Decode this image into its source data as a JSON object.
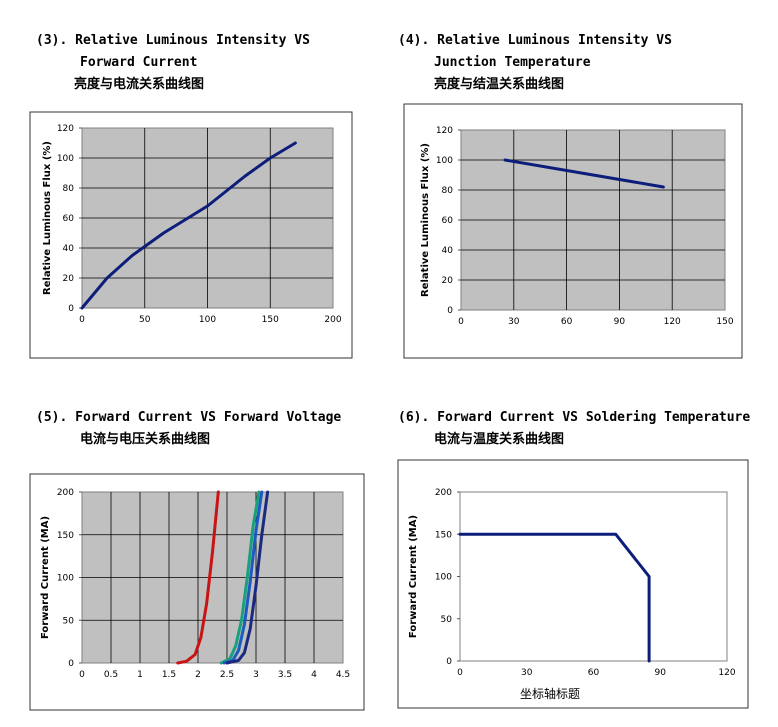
{
  "headings": {
    "h3": {
      "line1": "(3). Relative Luminous Intensity VS",
      "line2": "Forward Current",
      "cn": "亮度与电流关系曲线图"
    },
    "h4": {
      "line1": "(4). Relative Luminous Intensity VS",
      "line2": "Junction Temperature",
      "cn": "亮度与结温关系曲线图"
    },
    "h5": {
      "line1": "(5). Forward Current VS Forward Voltage",
      "cn": "电流与电压关系曲线图"
    },
    "h6": {
      "line1": "(6). Forward Current VS Soldering Temperature",
      "cn": "电流与温度关系曲线图"
    }
  },
  "chart_data": [
    {
      "type": "line",
      "ylabel": "Relative Luminous Flux (%)",
      "xlabel": "",
      "xlim": [
        0,
        200
      ],
      "ylim": [
        0,
        120
      ],
      "xticks": [
        0,
        50,
        100,
        150,
        200
      ],
      "yticks": [
        0,
        20,
        40,
        60,
        80,
        100,
        120
      ],
      "xtick_labels": [
        "0",
        "50",
        "100",
        "150",
        "200"
      ],
      "ytick_labels": [
        "0",
        "20",
        "40",
        "60",
        "80",
        "100",
        "120"
      ],
      "grid": true,
      "series": [
        {
          "color": "#0d1e7a",
          "x": [
            0,
            20,
            40,
            65,
            100,
            130,
            150,
            170
          ],
          "y": [
            0,
            20,
            35,
            50,
            68,
            88,
            100,
            110
          ]
        }
      ]
    },
    {
      "type": "line",
      "ylabel": "Relative Luminous Flux (%)",
      "xlabel": "",
      "xlim": [
        0,
        150
      ],
      "ylim": [
        0,
        120
      ],
      "xticks": [
        0,
        30,
        60,
        90,
        120,
        150
      ],
      "yticks": [
        0,
        20,
        40,
        60,
        80,
        100,
        120
      ],
      "xtick_labels": [
        "0",
        "30",
        "60",
        "90",
        "120",
        "150"
      ],
      "ytick_labels": [
        "0",
        "20",
        "40",
        "60",
        "80",
        "100",
        "120"
      ],
      "grid": true,
      "series": [
        {
          "color": "#0d1e7a",
          "x": [
            25,
            115
          ],
          "y": [
            100,
            82
          ]
        }
      ]
    },
    {
      "type": "line",
      "ylabel": "Forward Current (MA)",
      "xlabel": "",
      "xlim": [
        0,
        4.5
      ],
      "ylim": [
        0,
        200
      ],
      "xticks": [
        0,
        0.5,
        1,
        1.5,
        2,
        2.5,
        3,
        3.5,
        4,
        4.5
      ],
      "yticks": [
        0,
        50,
        100,
        150,
        200
      ],
      "xtick_labels": [
        "0",
        "0.5",
        "1",
        "1.5",
        "2",
        "2.5",
        "3",
        "3.5",
        "4",
        "4.5"
      ],
      "ytick_labels": [
        "0",
        "50",
        "100",
        "150",
        "200"
      ],
      "grid": true,
      "series": [
        {
          "color": "#c81414",
          "x": [
            1.65,
            1.8,
            1.95,
            2.05,
            2.15,
            2.25,
            2.35
          ],
          "y": [
            0,
            2,
            10,
            30,
            70,
            130,
            200
          ]
        },
        {
          "color": "#1aa07a",
          "x": [
            2.4,
            2.55,
            2.65,
            2.75,
            2.85,
            2.95,
            3.05
          ],
          "y": [
            0,
            5,
            20,
            50,
            100,
            160,
            200
          ]
        },
        {
          "color": "#1d5bc0",
          "x": [
            2.45,
            2.6,
            2.7,
            2.8,
            2.9,
            3.0,
            3.1
          ],
          "y": [
            0,
            3,
            15,
            45,
            95,
            155,
            200
          ]
        },
        {
          "color": "#1b2a80",
          "x": [
            2.5,
            2.7,
            2.8,
            2.9,
            3.0,
            3.1,
            3.2
          ],
          "y": [
            0,
            3,
            12,
            40,
            90,
            150,
            200
          ]
        }
      ]
    },
    {
      "type": "line",
      "ylabel": "Forward Current (MA)",
      "xlabel": "坐标轴标题",
      "xlim": [
        0,
        120
      ],
      "ylim": [
        0,
        200
      ],
      "xticks": [
        0,
        30,
        60,
        90,
        120
      ],
      "yticks": [
        0,
        50,
        100,
        150,
        200
      ],
      "xtick_labels": [
        "0",
        "30",
        "60",
        "90",
        "120"
      ],
      "ytick_labels": [
        "0",
        "50",
        "100",
        "150",
        "200"
      ],
      "grid": false,
      "series": [
        {
          "color": "#0d1e7a",
          "x": [
            0,
            70,
            85,
            85
          ],
          "y": [
            150,
            150,
            100,
            0
          ]
        }
      ]
    }
  ]
}
